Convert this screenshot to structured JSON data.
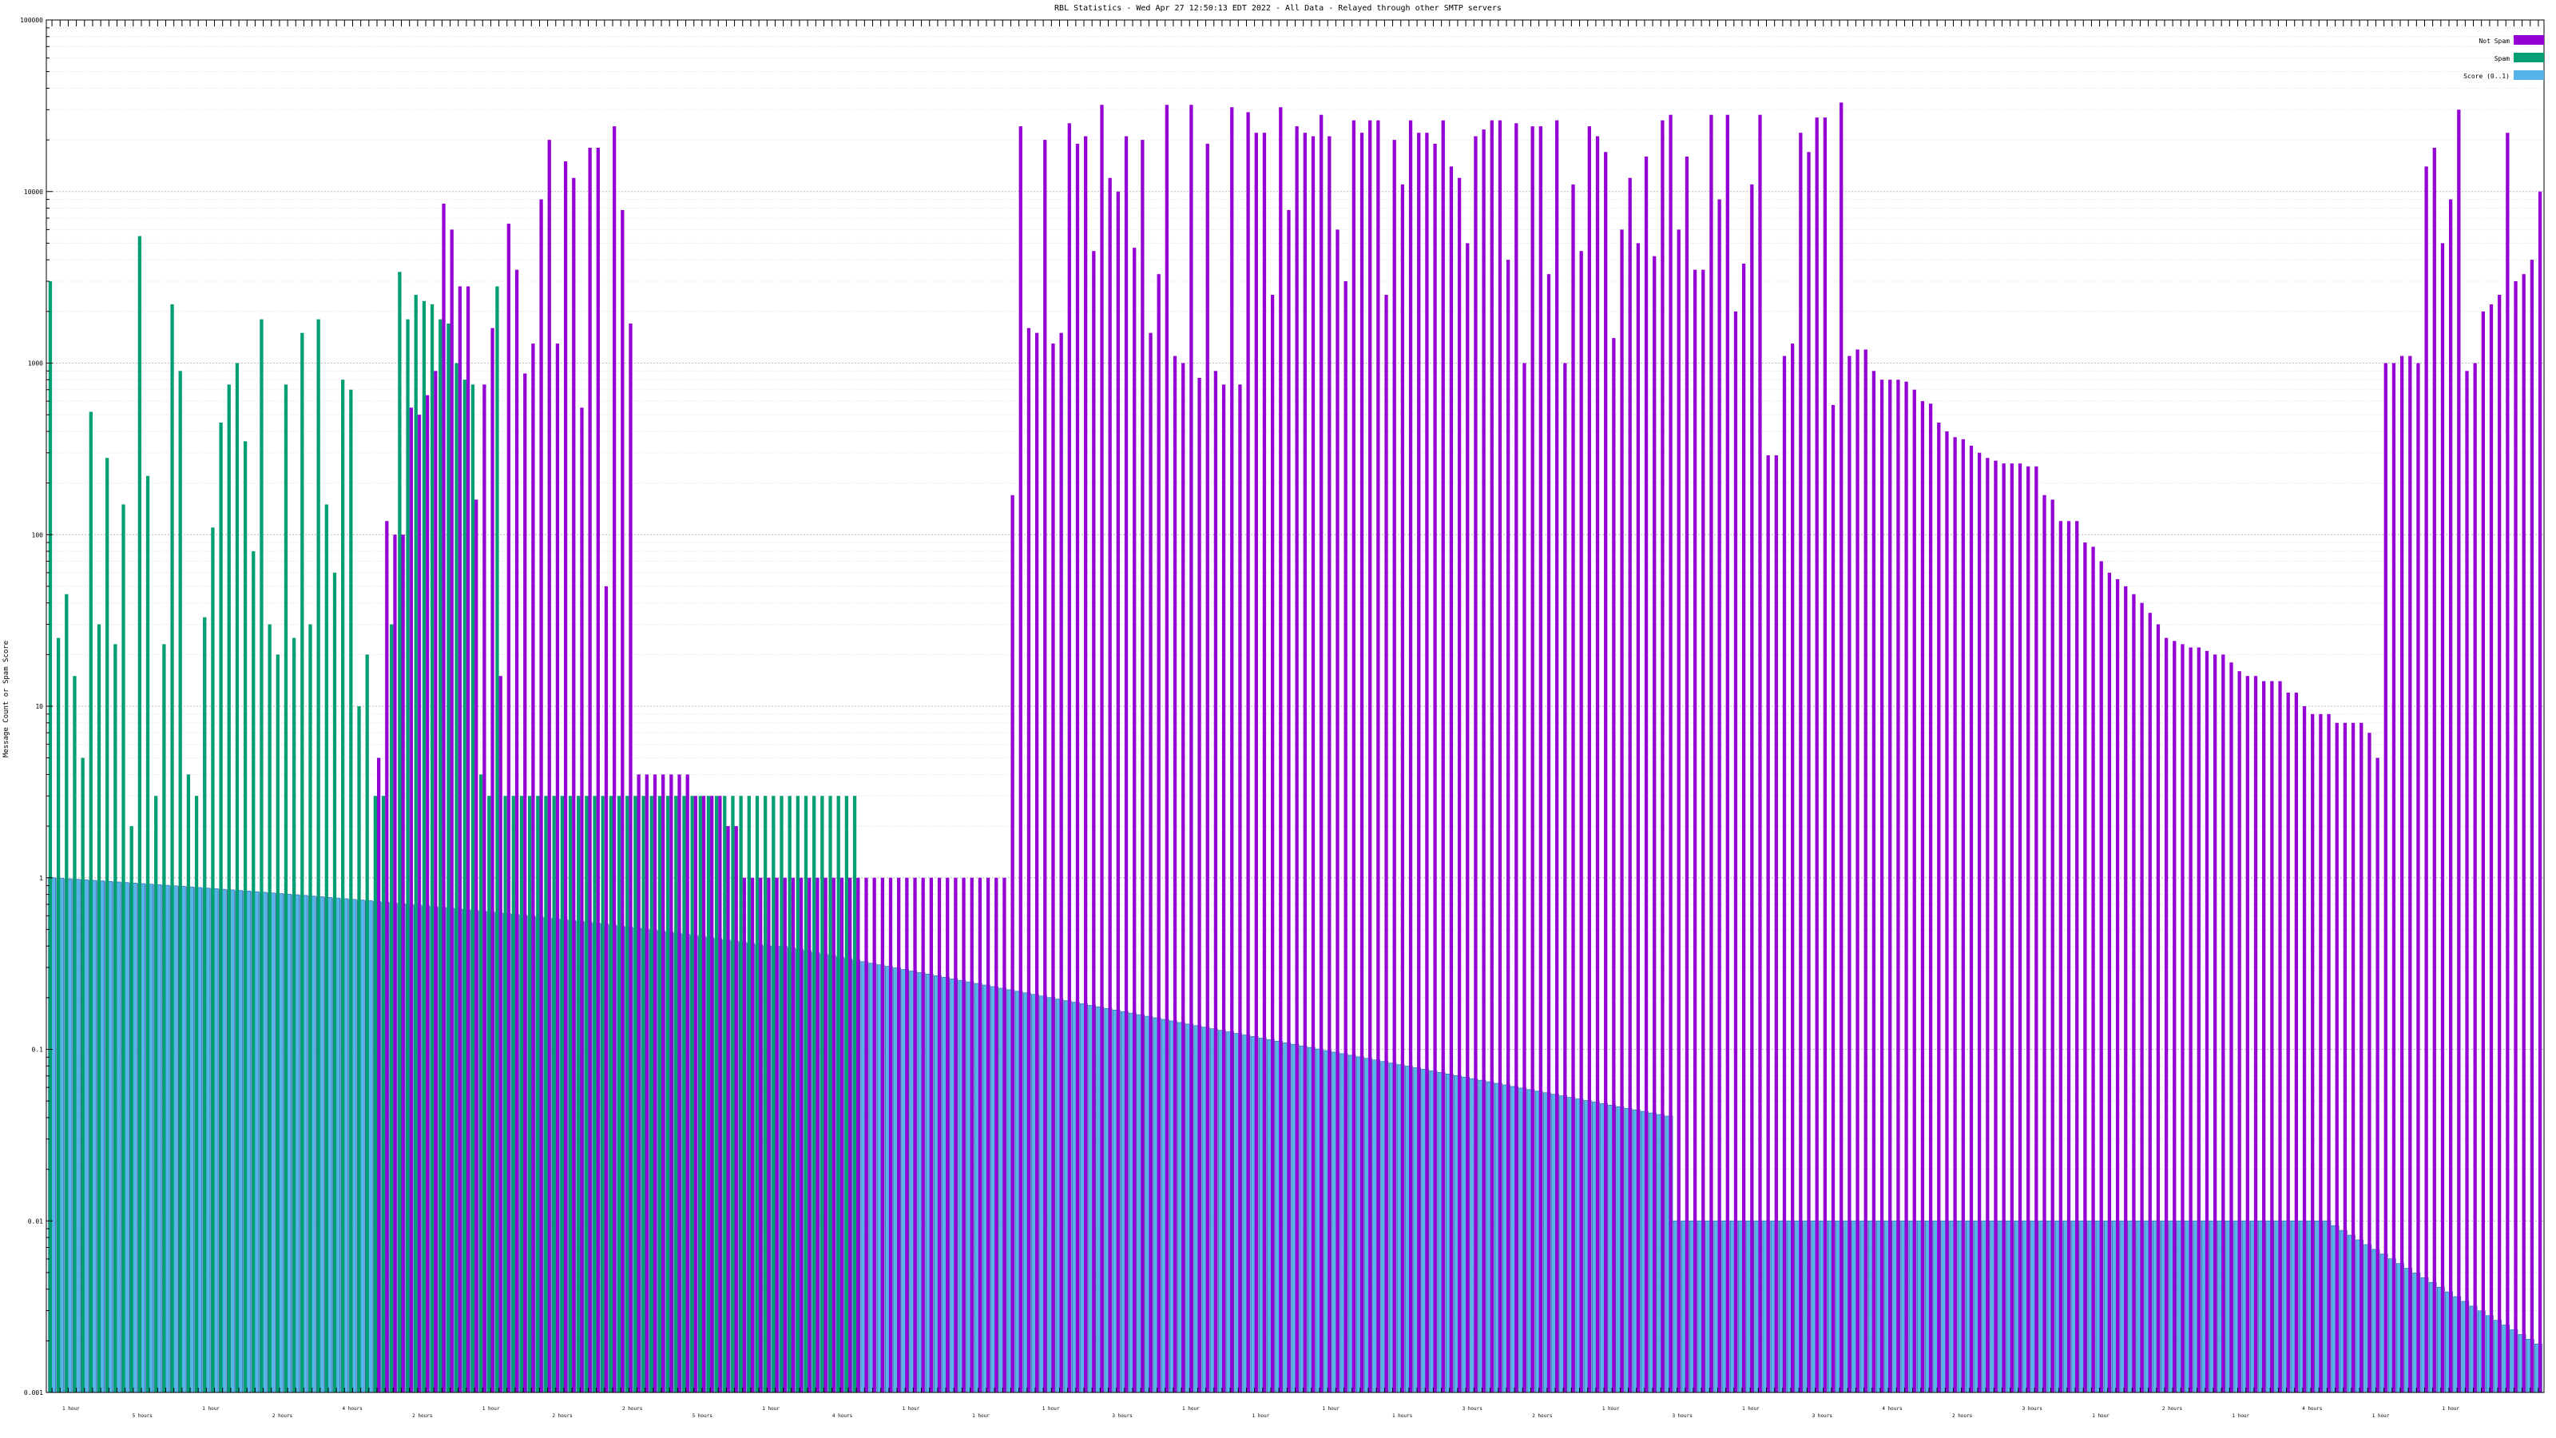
{
  "chart_data": {
    "type": "bar",
    "title": "RBL Statistics - Wed Apr 27 12:50:13 EDT 2022 - All Data - Relayed through other SMTP servers",
    "ylabel": "Message Count or Spam Score",
    "yscale": "log",
    "ylim": [
      0.001,
      100000
    ],
    "yticks": [
      "0.001",
      "0.01",
      "0.1",
      "1",
      "10",
      "100",
      "1000",
      "10000",
      "100000"
    ],
    "grid": true,
    "legend_position": "top-right",
    "colors": {
      "not_spam": "#9400d3",
      "spam": "#009e73",
      "score": "#56b4e9",
      "score_edge": "#2b5fa8"
    },
    "x_group_labels": [
      "1 hour",
      "5 hours",
      "1 hour",
      "2 hours",
      "4 hours",
      "2 hours",
      "1 hour",
      "2 hours",
      "2 hours",
      "5 hours",
      "1 hour",
      "4 hours",
      "1 hour",
      "1 hour",
      "1 hour",
      "3 hours",
      "1 hour",
      "1 hour",
      "1 hour",
      "1 hours",
      "3 hours",
      "2 hours",
      "1 hour",
      "3 hours",
      "1 hour",
      "3 hours",
      "4 hours",
      "2 hours",
      "3 hours",
      "1 hour",
      "2 hours",
      "1 hour",
      "4 hours",
      "1 hour",
      "1 hour"
    ],
    "series": [
      {
        "name": "Not Spam",
        "values": [
          0,
          0,
          0,
          0,
          0,
          0,
          0,
          0,
          0,
          0,
          0,
          0,
          0,
          0,
          0,
          0,
          0,
          0,
          0,
          0,
          0,
          0,
          0,
          0,
          0,
          0,
          0,
          0,
          0,
          0,
          0,
          0,
          0,
          0,
          0,
          0,
          0,
          0,
          0,
          0,
          5,
          120,
          100,
          100,
          550,
          500,
          650,
          900,
          8500,
          6000,
          2800,
          2800,
          160,
          750,
          1600,
          15,
          6500,
          3500,
          870,
          1300,
          9000,
          20000,
          1300,
          15000,
          12000,
          550,
          18000,
          18000,
          50,
          24000,
          7800,
          1700,
          4,
          4,
          4,
          4,
          4,
          4,
          4,
          3,
          3,
          3,
          3,
          2,
          2,
          1,
          1,
          1,
          1,
          1,
          1,
          1,
          1,
          1,
          1,
          1,
          1,
          1,
          1,
          1,
          1,
          1,
          1,
          1,
          1,
          1,
          1,
          1,
          1,
          1,
          1,
          1,
          1,
          1,
          1,
          1,
          1,
          1,
          170,
          24000,
          1600,
          1500,
          20000,
          1300,
          1500,
          25000,
          19000,
          21000,
          4500,
          32000,
          12000,
          10000,
          21000,
          4700,
          20000,
          1500,
          3300,
          32000,
          1100,
          1000,
          32000,
          820,
          19000,
          900,
          750,
          31000,
          750,
          29000,
          22000,
          22000,
          2500,
          31000,
          7800,
          24000,
          22000,
          21000,
          28000,
          21000,
          6000,
          3000,
          26000,
          22000,
          26000,
          26000,
          2500,
          20000,
          11000,
          26000,
          22000,
          22000,
          19000,
          26000,
          14000,
          12000,
          5000,
          21000,
          23000,
          26000,
          26000,
          4000,
          25000,
          1000,
          24000,
          24000,
          3300,
          26000,
          1000,
          11000,
          4500,
          24000,
          21000,
          17000,
          1400,
          6000,
          12000,
          5000,
          16000,
          4200,
          26000,
          28000,
          6000,
          16000,
          3500,
          3500,
          28000,
          9000,
          28000,
          2000,
          3800,
          11000,
          28000,
          290,
          290,
          1100,
          1300,
          22000,
          17000,
          27000,
          27000,
          570,
          33000,
          1100,
          1200,
          1200,
          900,
          800,
          800,
          800,
          780,
          700,
          600,
          580,
          450,
          400,
          370,
          360,
          330,
          300,
          280,
          270,
          260,
          260,
          260,
          250,
          250,
          170,
          160,
          120,
          120,
          120,
          90,
          85,
          70,
          60,
          55,
          50,
          45,
          40,
          35,
          30,
          25,
          24,
          23,
          22,
          22,
          21,
          20,
          20,
          18,
          16,
          15,
          15,
          14,
          14,
          14,
          12,
          12,
          10,
          9,
          9,
          9,
          8,
          8,
          8,
          8,
          7,
          5,
          1000,
          1000,
          1100,
          1100,
          1000,
          14000,
          18000,
          5000,
          9000,
          30000,
          900,
          1000,
          2000,
          2200,
          2500,
          22000,
          3000,
          3300,
          4000,
          10000
        ]
      },
      {
        "name": "Spam",
        "values": [
          3000,
          25,
          45,
          15,
          5,
          520,
          30,
          280,
          23,
          150,
          2,
          5500,
          220,
          3,
          23,
          2200,
          900,
          4,
          3,
          33,
          110,
          450,
          750,
          1000,
          350,
          80,
          1800,
          30,
          20,
          750,
          25,
          1500,
          30,
          1800,
          150,
          60,
          800,
          700,
          10,
          20,
          3,
          3,
          30,
          3400,
          1800,
          2500,
          2300,
          2200,
          1800,
          1700,
          1000,
          800,
          750,
          4,
          3,
          2800,
          3,
          3,
          3,
          3,
          3,
          3,
          3,
          3,
          3,
          3,
          3,
          3,
          3,
          3,
          3,
          3,
          3,
          3,
          3,
          3,
          3,
          3,
          3,
          3,
          3,
          3,
          3,
          3,
          3,
          3,
          3,
          3,
          3,
          3,
          3,
          3,
          3,
          3,
          3,
          3,
          3,
          3,
          3,
          3,
          0,
          0,
          0,
          0,
          0,
          0,
          0,
          0,
          0,
          0,
          0,
          0,
          0,
          0,
          0,
          0,
          0,
          0,
          0,
          0,
          0,
          0,
          0,
          0,
          0,
          0,
          0,
          0,
          0,
          0,
          0,
          0,
          0,
          0,
          0,
          0,
          0,
          0,
          0,
          0,
          0,
          0,
          0,
          0,
          0,
          0,
          0,
          0,
          0,
          0,
          0,
          0,
          0,
          0,
          0,
          0,
          0,
          0,
          0,
          0,
          0,
          0,
          0,
          0,
          0,
          0,
          0,
          0,
          0,
          0,
          0,
          0,
          0,
          0,
          0,
          0,
          0,
          0,
          0,
          0,
          0,
          0,
          0,
          0,
          0,
          0,
          0,
          0,
          0,
          0,
          0,
          0,
          0,
          0,
          0,
          0,
          0,
          0,
          0,
          0,
          0,
          0,
          0,
          0,
          0,
          0,
          0,
          0,
          0,
          0,
          0,
          0,
          0,
          0,
          0,
          0,
          0,
          0,
          0,
          0,
          0,
          0,
          0,
          0,
          0,
          0,
          0,
          0,
          0,
          0,
          0,
          0,
          0,
          0,
          0,
          0,
          0,
          0,
          0,
          0,
          0,
          0,
          0,
          0,
          0,
          0,
          0
        ]
      },
      {
        "name": "Score (0..1)",
        "values": []
      }
    ]
  }
}
